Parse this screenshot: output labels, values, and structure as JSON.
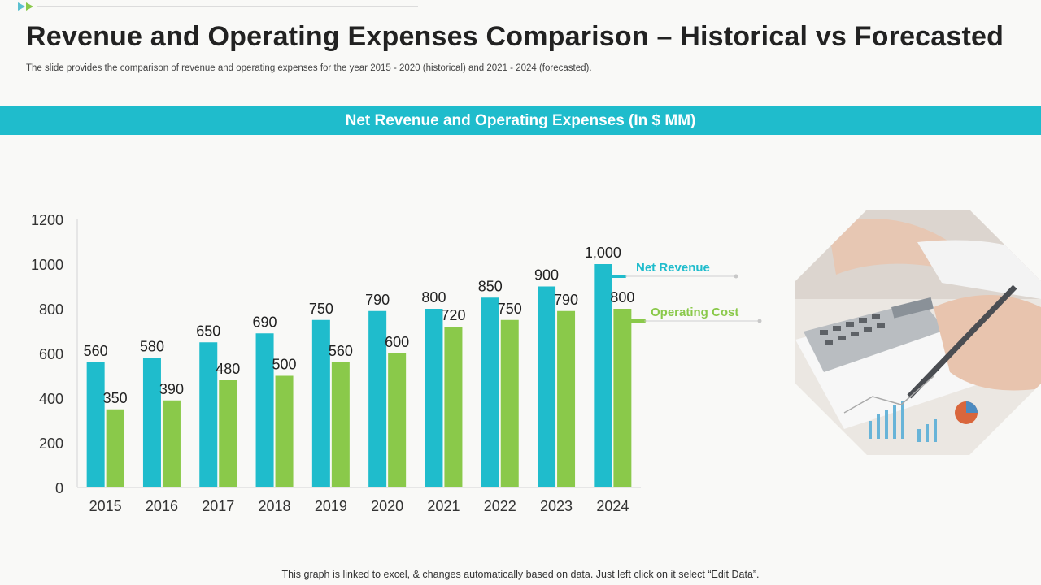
{
  "header": {
    "title": "Revenue and Operating Expenses Comparison – Historical vs Forecasted",
    "subtitle": "The slide provides the comparison of revenue and operating expenses for the year 2015 - 2020 (historical) and 2021 - 2024 (forecasted)."
  },
  "banner": {
    "label": "Net Revenue and Operating Expenses (In $ MM)"
  },
  "footer": {
    "note": "This graph is linked to excel, & changes automatically based on data. Just left click on it select “Edit Data”."
  },
  "colors": {
    "accent": "#1fbccc",
    "revenue": "#1fbccc",
    "cost": "#8ac94a"
  },
  "chart_data": {
    "type": "bar",
    "title": "Net Revenue and Operating Expenses (In $ MM)",
    "categories": [
      "2015",
      "2016",
      "2017",
      "2018",
      "2019",
      "2020",
      "2021",
      "2022",
      "2023",
      "2024"
    ],
    "series": [
      {
        "name": "Net Revenue",
        "values": [
          560,
          580,
          650,
          690,
          750,
          790,
          800,
          850,
          900,
          1000
        ],
        "labels": [
          "560",
          "580",
          "650",
          "690",
          "750",
          "790",
          "800",
          "850",
          "900",
          "1,000"
        ]
      },
      {
        "name": "Operating Cost",
        "values": [
          350,
          390,
          480,
          500,
          560,
          600,
          720,
          750,
          790,
          800
        ],
        "labels": [
          "350",
          "390",
          "480",
          "500",
          "560",
          "600",
          "720",
          "750",
          "790",
          "800"
        ]
      }
    ],
    "yticks": [
      "0",
      "200",
      "400",
      "600",
      "800",
      "1000",
      "1200"
    ],
    "ylim": [
      0,
      1200
    ],
    "xlabel": "",
    "ylabel": "",
    "legend": "right"
  }
}
